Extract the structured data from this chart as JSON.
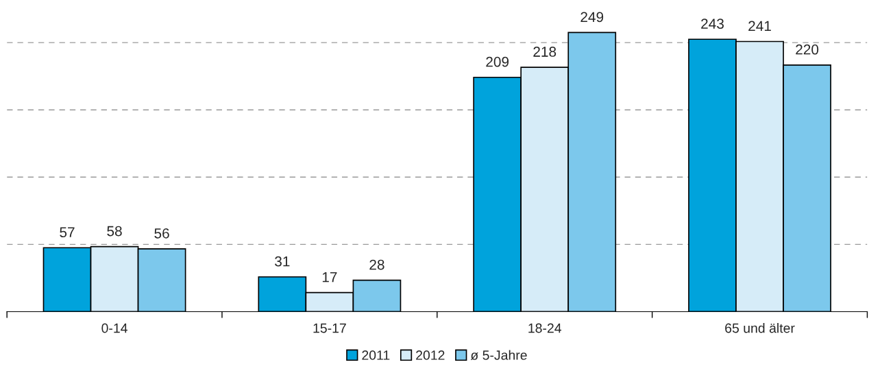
{
  "chart_data": {
    "type": "bar",
    "categories": [
      "0-14",
      "15-17",
      "18-24",
      "65 und älter"
    ],
    "series": [
      {
        "name": "2011",
        "color": "#00a3dc",
        "values": [
          57,
          31,
          209,
          243
        ]
      },
      {
        "name": "2012",
        "color": "#d6ecf8",
        "values": [
          58,
          17,
          218,
          241
        ]
      },
      {
        "name": "ø 5-Jahre",
        "color": "#7cc8ec",
        "values": [
          56,
          28,
          249,
          220
        ]
      }
    ],
    "yticks": [
      {
        "value": 60,
        "label": null
      },
      {
        "value": 120,
        "label": null
      },
      {
        "value": 180,
        "label": null
      },
      {
        "value": 240,
        "label": null
      }
    ],
    "tick_labels": "x",
    "grid": "y",
    "legend": "bottom",
    "data_labels": true
  }
}
